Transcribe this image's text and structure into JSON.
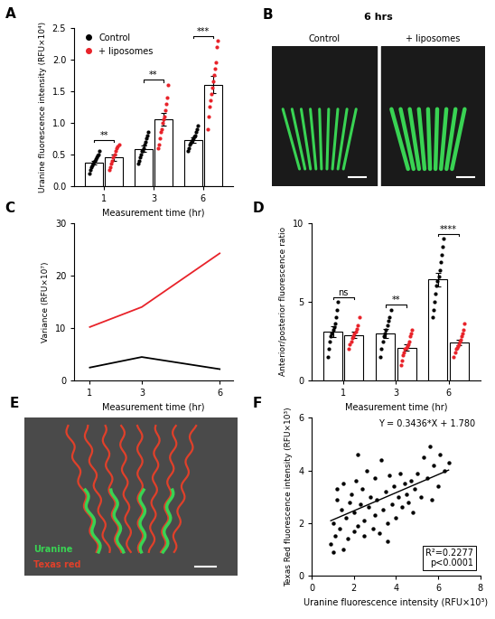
{
  "chart_data": [
    {
      "type": "bar",
      "title": "A",
      "categories": [
        "1",
        "3",
        "6"
      ],
      "x_label": "Measurement time (hr)",
      "y_label": "Uranine fluorescence intensity (RFU×10⁴)",
      "ylim": [
        0,
        2.5
      ],
      "yticks": [
        {
          "value": 0,
          "label": "0.0"
        },
        {
          "value": 0.5,
          "label": "0.5"
        },
        {
          "value": 1.0,
          "label": "1.0"
        },
        {
          "value": 1.5,
          "label": "1.5"
        },
        {
          "value": 2.0,
          "label": "2.0"
        },
        {
          "value": 2.5,
          "label": "2.5"
        }
      ],
      "legend": "upper left",
      "significance": [
        "**",
        "**",
        "***"
      ],
      "series": [
        {
          "name": "Control",
          "color": "#000000",
          "values": [
            0.37,
            0.58,
            0.72
          ],
          "errors": [
            0.03,
            0.05,
            0.04
          ],
          "points": [
            [
              0.2,
              0.25,
              0.3,
              0.32,
              0.35,
              0.38,
              0.4,
              0.42,
              0.45,
              0.48,
              0.5,
              0.55
            ],
            [
              0.35,
              0.4,
              0.45,
              0.5,
              0.55,
              0.55,
              0.6,
              0.65,
              0.7,
              0.75,
              0.8,
              0.85
            ],
            [
              0.55,
              0.6,
              0.65,
              0.68,
              0.7,
              0.72,
              0.75,
              0.78,
              0.8,
              0.85,
              0.9,
              0.95
            ]
          ]
        },
        {
          "name": "+ liposomes",
          "color": "#e8232a",
          "values": [
            0.45,
            1.05,
            1.6
          ],
          "errors": [
            0.05,
            0.1,
            0.14
          ],
          "points": [
            [
              0.25,
              0.3,
              0.35,
              0.4,
              0.45,
              0.5,
              0.55,
              0.6,
              0.62,
              0.65
            ],
            [
              0.6,
              0.65,
              0.75,
              0.85,
              0.9,
              1.0,
              1.05,
              1.1,
              1.2,
              1.3,
              1.4,
              1.6
            ],
            [
              0.9,
              1.1,
              1.25,
              1.35,
              1.45,
              1.55,
              1.65,
              1.75,
              1.85,
              1.95,
              2.2,
              2.3
            ]
          ]
        }
      ]
    },
    {
      "type": "line",
      "title": "C",
      "x": [
        1,
        3,
        6
      ],
      "x_label": "Measurement time (hr)",
      "y_label": "Variance (RFU×10⁷)",
      "xlim": [
        0.4,
        6.5
      ],
      "xticks": [
        1,
        3,
        6
      ],
      "ylim": [
        0,
        30
      ],
      "yticks": [
        0,
        10,
        20,
        30
      ],
      "series": [
        {
          "color": "#e8232a",
          "values": [
            10.2,
            14.0,
            24.2
          ]
        },
        {
          "color": "#000000",
          "values": [
            2.5,
            4.5,
            2.2
          ]
        }
      ]
    },
    {
      "type": "bar",
      "title": "D",
      "categories": [
        "1",
        "3",
        "6"
      ],
      "x_label": "Measurement time (hr)",
      "y_label": "Anterior/posterior fluorescence ratio",
      "ylim": [
        0,
        10
      ],
      "yticks": [
        0,
        5,
        10
      ],
      "significance": [
        "ns",
        "**",
        "****"
      ],
      "series": [
        {
          "color": "#000000",
          "values": [
            3.1,
            3.0,
            6.4
          ],
          "errors": [
            0.35,
            0.3,
            0.45
          ],
          "points": [
            [
              1.5,
              2.0,
              2.5,
              2.8,
              3.0,
              3.2,
              3.4,
              3.6,
              4.0,
              4.5,
              5.0
            ],
            [
              1.5,
              2.0,
              2.5,
              2.8,
              3.0,
              3.2,
              3.5,
              3.8,
              4.0,
              4.5
            ],
            [
              4.0,
              4.5,
              5.0,
              5.5,
              6.0,
              6.3,
              6.6,
              7.0,
              7.5,
              8.0,
              8.5,
              9.0
            ]
          ]
        },
        {
          "color": "#e8232a",
          "values": [
            2.9,
            2.1,
            2.4
          ],
          "errors": [
            0.2,
            0.2,
            0.18
          ],
          "points": [
            [
              2.0,
              2.3,
              2.5,
              2.7,
              2.8,
              3.0,
              3.1,
              3.3,
              3.5,
              4.0
            ],
            [
              1.0,
              1.3,
              1.6,
              1.8,
              2.0,
              2.1,
              2.2,
              2.3,
              2.5,
              2.8,
              3.0,
              3.2
            ],
            [
              1.5,
              1.8,
              2.0,
              2.1,
              2.2,
              2.3,
              2.5,
              2.6,
              2.8,
              3.0,
              3.2,
              3.6
            ]
          ]
        }
      ]
    },
    {
      "type": "scatter",
      "title": "F",
      "x_label": "Uranine fluorescence intensity (RFU×10³)",
      "y_label": "Texas Red fluorescence intensity (RFU×10³)",
      "xlim": [
        0,
        8
      ],
      "xticks": [
        0,
        2,
        4,
        6,
        8
      ],
      "ylim": [
        0,
        6
      ],
      "yticks": [
        0,
        2,
        4,
        6
      ],
      "color": "#000000",
      "x": [
        0.9,
        1.0,
        1.0,
        1.1,
        1.2,
        1.2,
        1.3,
        1.4,
        1.5,
        1.5,
        1.6,
        1.7,
        1.8,
        1.9,
        2.0,
        2.0,
        2.1,
        2.2,
        2.3,
        2.4,
        2.5,
        2.5,
        2.6,
        2.7,
        2.8,
        2.9,
        3.0,
        3.0,
        3.1,
        3.2,
        3.3,
        3.4,
        3.5,
        3.6,
        3.7,
        3.8,
        3.9,
        4.0,
        4.1,
        4.2,
        4.3,
        4.4,
        4.5,
        4.6,
        4.7,
        4.8,
        4.9,
        5.0,
        5.2,
        5.3,
        5.5,
        5.7,
        5.8,
        6.0,
        6.1,
        6.3,
        6.5,
        5.6,
        3.6,
        2.2
      ],
      "values": [
        1.2,
        0.9,
        2.0,
        1.5,
        2.9,
        3.3,
        1.8,
        2.5,
        1.0,
        3.5,
        2.2,
        1.4,
        2.8,
        3.1,
        1.7,
        2.4,
        3.6,
        1.9,
        2.7,
        3.3,
        1.5,
        2.1,
        4.0,
        2.6,
        3.0,
        1.8,
        2.3,
        3.7,
        2.9,
        1.6,
        4.4,
        2.5,
        3.2,
        2.0,
        3.8,
        2.7,
        3.4,
        2.2,
        3.0,
        3.9,
        2.6,
        3.5,
        3.1,
        2.8,
        3.6,
        2.4,
        3.3,
        3.9,
        3.0,
        4.5,
        3.7,
        2.9,
        4.2,
        3.4,
        4.6,
        4.0,
        4.3,
        4.9,
        1.3,
        4.6
      ],
      "fit": {
        "slope": 0.3436,
        "intercept": 1.78
      },
      "annotations": [
        "Y = 0.3436*X + 1.780",
        "R²=0.2277",
        "p<0.0001"
      ]
    }
  ],
  "images": [
    {
      "title": "B",
      "header": "6 hrs",
      "labels": [
        "Control",
        "+ liposomes"
      ]
    },
    {
      "title": "E",
      "labels": [
        "Uranine",
        "Texas red"
      ]
    }
  ]
}
